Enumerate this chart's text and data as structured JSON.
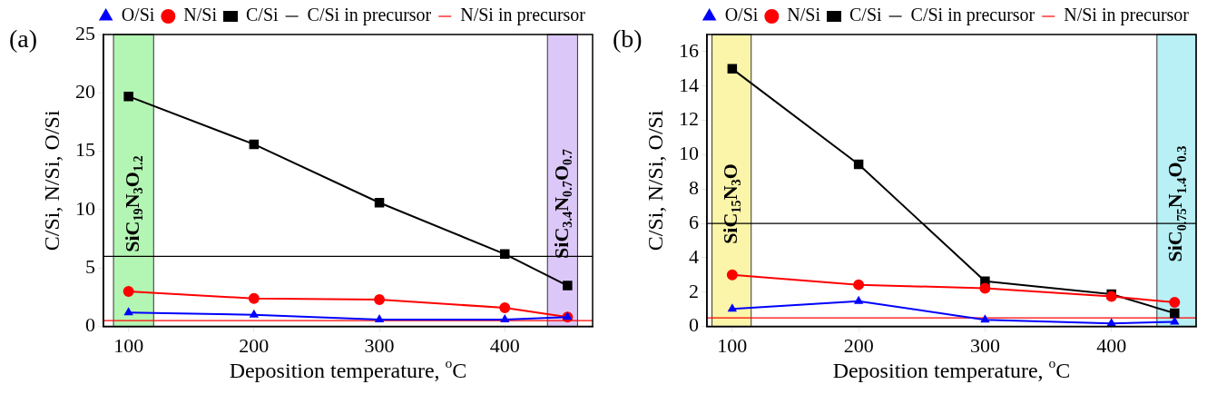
{
  "chart_data": [
    {
      "type": "line",
      "title": "(a)",
      "xlabel": "Deposition temperature, $^{o}$C",
      "ylabel": "C/Si, N/Si, O/Si",
      "x": [
        100,
        200,
        300,
        400,
        450
      ],
      "series": [
        {
          "name": "C/Si",
          "color": "#000000",
          "marker": "square",
          "values": [
            19.7,
            15.6,
            10.6,
            6.2,
            3.5
          ]
        },
        {
          "name": "N/Si",
          "color": "#ff0000",
          "marker": "circle",
          "values": [
            3.0,
            2.4,
            2.3,
            1.6,
            0.8
          ]
        },
        {
          "name": "O/Si",
          "color": "#0000ff",
          "marker": "triangle",
          "values": [
            1.2,
            1.0,
            0.6,
            0.6,
            0.8
          ]
        }
      ],
      "ref_lines": [
        {
          "axis": "y",
          "value": 6,
          "label": "C/Si in precursor",
          "color": "#000000"
        },
        {
          "axis": "y",
          "value": 0.5,
          "label": "N/Si in precursor",
          "color": "#ff0000"
        }
      ],
      "bands": [
        {
          "axis": "x",
          "from": 88,
          "to": 120,
          "label": "SiC$_{19}$N$_{3}$O$_{1.2}$",
          "color": "#b3f5b3"
        },
        {
          "axis": "x",
          "from": 434,
          "to": 458,
          "label": "SiC$_{3.4}$N$_{0.7}$O$_{0.7}$",
          "color": "#dcc8f8"
        }
      ],
      "xlim": [
        80,
        470
      ],
      "xticks": [
        100,
        200,
        300,
        400
      ],
      "ylim": [
        0,
        25
      ],
      "yticks": [
        0,
        5,
        10,
        15,
        20,
        25
      ],
      "grid": false,
      "legend": "top"
    },
    {
      "type": "line",
      "title": "(b)",
      "xlabel": "Deposition temperature, $^{o}$C",
      "ylabel": "C/Si, N/Si, O/Si",
      "x": [
        100,
        200,
        300,
        400,
        450
      ],
      "series": [
        {
          "name": "C/Si",
          "color": "#000000",
          "marker": "square",
          "values": [
            15.0,
            9.44,
            2.63,
            1.88,
            0.77
          ]
        },
        {
          "name": "N/Si",
          "color": "#ff0000",
          "marker": "circle",
          "values": [
            3.0,
            2.43,
            2.22,
            1.75,
            1.4
          ]
        },
        {
          "name": "O/Si",
          "color": "#0000ff",
          "marker": "triangle",
          "values": [
            1.02,
            1.47,
            0.39,
            0.18,
            0.27
          ]
        }
      ],
      "ref_lines": [
        {
          "axis": "y",
          "value": 6,
          "label": "C/Si in precursor",
          "color": "#000000"
        },
        {
          "axis": "y",
          "value": 0.5,
          "label": "N/Si in precursor",
          "color": "#ff0000"
        }
      ],
      "bands": [
        {
          "axis": "x",
          "from": 84,
          "to": 115,
          "label": "SiC$_{15}$N$_{3}$O",
          "color": "#faf5a8"
        },
        {
          "axis": "x",
          "from": 436,
          "to": 467,
          "label": "SiC$_{0.75}$N$_{1.4}$O$_{0.3}$",
          "color": "#b8f0f5"
        }
      ],
      "xlim": [
        80,
        467
      ],
      "xticks": [
        100,
        200,
        300,
        400
      ],
      "ylim": [
        0,
        17
      ],
      "yticks": [
        0,
        2,
        4,
        6,
        8,
        10,
        12,
        14,
        16
      ],
      "grid": false,
      "legend": "top"
    }
  ]
}
